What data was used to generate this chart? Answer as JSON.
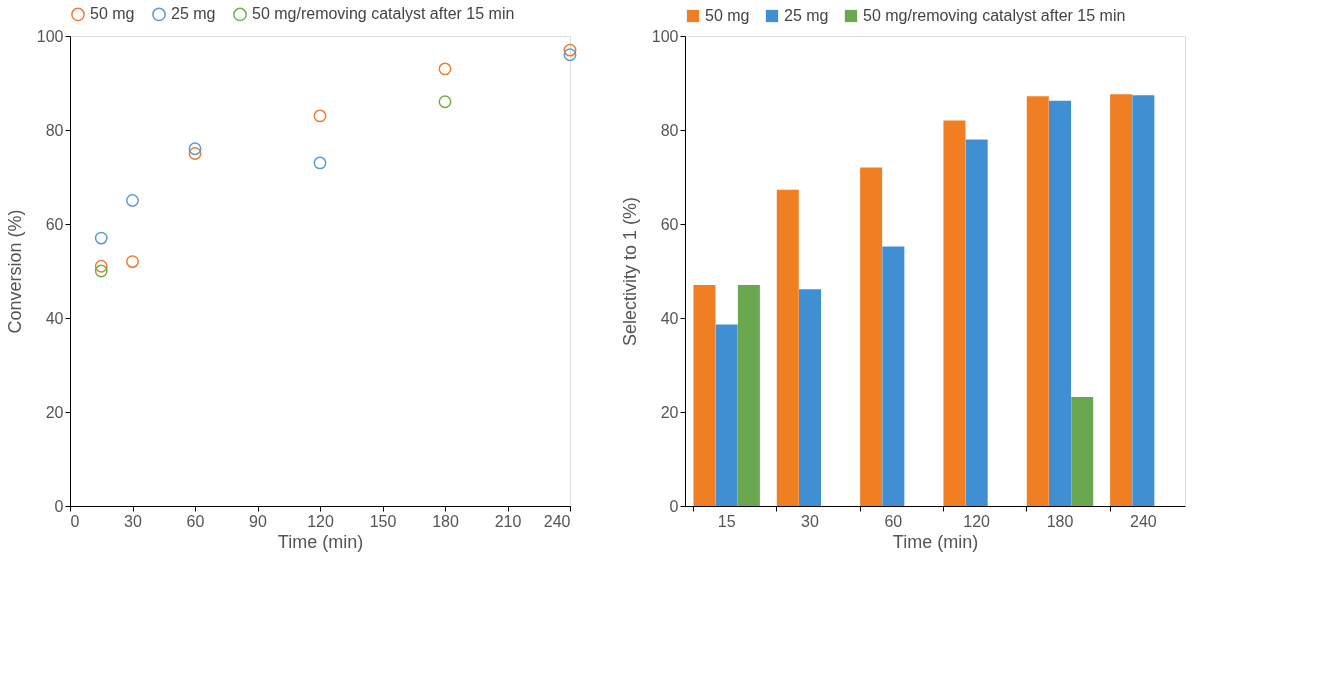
{
  "chart_data": [
    {
      "type": "scatter",
      "x": [
        15,
        30,
        60,
        120,
        180,
        240
      ],
      "xlabel": "Time (min)",
      "ylabel": "Conversion (%)",
      "xlim": [
        0,
        240
      ],
      "xticks": [
        0,
        30,
        60,
        90,
        120,
        150,
        180,
        210,
        240
      ],
      "ylim": [
        0,
        100
      ],
      "yticks": [
        0,
        20,
        40,
        60,
        80,
        100
      ],
      "grid": false,
      "legend": "top left",
      "marker": "circle",
      "series": [
        {
          "name": "50 mg",
          "color": "#ed7d31",
          "values": [
            51,
            52,
            75,
            83,
            93,
            97
          ]
        },
        {
          "name": "25 mg",
          "color": "#5b9bd5",
          "values": [
            57,
            65,
            76,
            73,
            null,
            96
          ]
        },
        {
          "name": "50 mg/removing catalyst after 15 min",
          "color": "#70ad47",
          "values": [
            50,
            null,
            null,
            null,
            86,
            null
          ]
        }
      ]
    },
    {
      "type": "bar",
      "categories": [
        "15",
        "30",
        "60",
        "120",
        "180",
        "240"
      ],
      "xlabel": "Time (min)",
      "ylabel": "Selectivity to 1 (%)",
      "ylim": [
        0,
        100
      ],
      "yticks": [
        0,
        20,
        40,
        60,
        80,
        100
      ],
      "grid": false,
      "legend": "top left",
      "series": [
        {
          "name": "50 mg",
          "color": "#f07f23",
          "values": [
            47,
            67.3,
            72,
            82,
            87.2,
            87.6
          ]
        },
        {
          "name": "25 mg",
          "color": "#3f8fd2",
          "values": [
            38.6,
            46.1,
            55.2,
            78,
            86.2,
            87.4
          ]
        },
        {
          "name": "50 mg/removing catalyst after 15 min",
          "color": "#6aa84f",
          "values": [
            47,
            null,
            null,
            null,
            23.2,
            null
          ]
        }
      ]
    }
  ]
}
